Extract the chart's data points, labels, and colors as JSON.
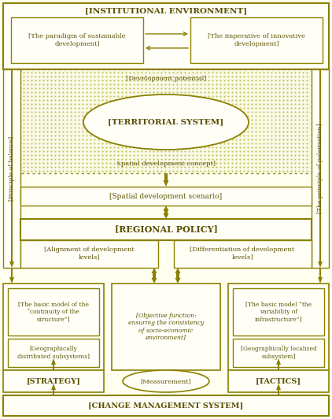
{
  "bg_color": "#fffff0",
  "border_color": "#8B8000",
  "text_color": "#5a5000",
  "box_fill": "#fffff8",
  "title": "INSTITUTIONAL ENVIRONMENT",
  "box1_text": "The paradigm of sustainable\ndevelopment",
  "box2_text": "The imperative of innovative\ndevelopment",
  "dev_potential": "Development potential",
  "territorial": "TERRITORIAL SYSTEM",
  "spatial_concept": "Spatial development concept",
  "spatial_scenario": "Spatial development scenario",
  "regional_policy": "REGIONAL POLICY",
  "alignment": "Alignment of development\nlevels",
  "differentiation": "Differentiation of development\nlevels",
  "principle_balance": "Principle of balance",
  "principle_polarization": "The principle of polarization",
  "basic_model_left": "The basic model of the\n“continuity of the\nstructure”",
  "geo_distributed": "Geographically\ndistributed subsystems",
  "objective_function": "[Objective function:\nensuring the consistency\nof socio-economic\nenvironment]",
  "basic_model_right": "The basic model “the\nvariability of\ninfrastructure”",
  "geo_localized": "Geographically localized\nsubsystem",
  "strategy": "STRATEGY",
  "measurement": "Measurement",
  "tactics": "TACTICS",
  "change_mgmt": "CHANGE MANAGEMENT SYSTEM"
}
